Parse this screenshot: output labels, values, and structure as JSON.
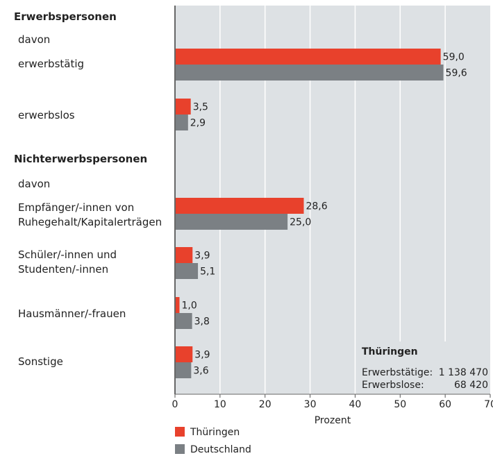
{
  "chart_data": {
    "type": "bar",
    "orientation": "horizontal",
    "categories": [
      "Erwerbspersonen",
      "davon",
      "erwerbstätig",
      "erwerbslos",
      "Nichterwerbspersonen",
      "davon",
      "Empfänger/-innen von\nRuhegehalt/Kapitalerträgen",
      "Schüler/-innen und\nStudenten/-innen",
      "Hausmänner/-frauen",
      "Sonstige"
    ],
    "series": [
      {
        "name": "Thüringen",
        "color": "#e8412c",
        "values": [
          null,
          null,
          59.0,
          3.5,
          null,
          null,
          28.6,
          3.9,
          1.0,
          3.9
        ],
        "value_labels": [
          null,
          null,
          "59,0",
          "3,5",
          null,
          null,
          "28,6",
          "3,9",
          "1,0",
          "3,9"
        ]
      },
      {
        "name": "Deutschland",
        "color": "#7b8084",
        "values": [
          null,
          null,
          59.6,
          2.9,
          null,
          null,
          25.0,
          5.1,
          3.8,
          3.6
        ],
        "value_labels": [
          null,
          null,
          "59,6",
          "2,9",
          null,
          null,
          "25,0",
          "5,1",
          "3,8",
          "3,6"
        ]
      }
    ],
    "xlim": [
      0,
      70
    ],
    "xticks": [
      0,
      10,
      20,
      30,
      40,
      50,
      60,
      70
    ],
    "xlabel": "Prozent",
    "grid": true,
    "annotation": {
      "title": "Thüringen",
      "rows": [
        {
          "label": "Erwerbstätige:",
          "value": "1 138 470"
        },
        {
          "label": "Erwerbslose:",
          "value": "68 420"
        }
      ]
    }
  }
}
